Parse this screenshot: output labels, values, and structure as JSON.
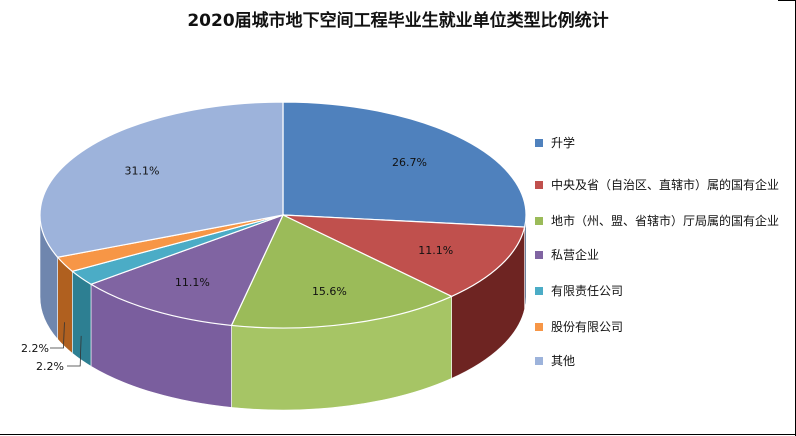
{
  "chart_data": {
    "type": "pie",
    "title": "2020届城市地下空间工程毕业生就业单位类型比例统计",
    "slices": [
      {
        "label": "升学",
        "value": 26.7,
        "display": "26.7%",
        "color": "#4F81BD",
        "side": "#2E4E78"
      },
      {
        "label": "中央及省（自治区、直辖市）属的国有企业",
        "value": 11.1,
        "display": "11.1%",
        "color": "#C0504D",
        "side": "#6E2422"
      },
      {
        "label": "地市（州、盟、省辖市）厅局属的国有企业",
        "value": 15.6,
        "display": "15.6%",
        "color": "#9BBB59",
        "side": "#A6C565"
      },
      {
        "label": "私营企业",
        "value": 11.1,
        "display": "11.1%",
        "color": "#8064A2",
        "side": "#7A5E9E"
      },
      {
        "label": "有限责任公司",
        "value": 2.2,
        "display": "2.2%",
        "color": "#4BACC6",
        "side": "#2D7F92"
      },
      {
        "label": "股份有限公司",
        "value": 2.2,
        "display": "2.2%",
        "color": "#F79646",
        "side": "#B0601F"
      },
      {
        "label": "其他",
        "value": 31.1,
        "display": "31.1%",
        "color": "#9DB3DB",
        "side": "#6F86AE"
      }
    ],
    "legend_position": "right"
  }
}
